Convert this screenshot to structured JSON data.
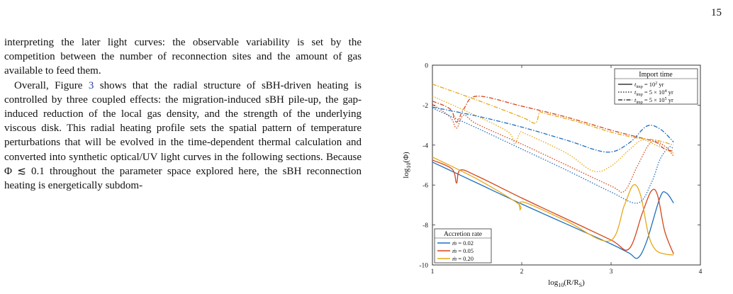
{
  "page": {
    "number": "15"
  },
  "text_column": {
    "paragraph1": "interpreting the later light curves: the observable variability is set by the competition between the number of reconnection sites and the amount of gas available to feed them.",
    "paragraph2_before_ref": "Overall, Figure ",
    "paragraph2_ref": "3",
    "paragraph2_after_ref": " shows that the radial structure of sBH-driven heating is controlled by three coupled effects: the migration-induced sBH pile-up, the gap-induced reduction of the local gas density, and the strength of the underlying viscous disk. This radial heating profile sets the spatial pattern of temperature perturbations that will be evolved in the time-dependent thermal calculation and converted into synthetic optical/UV light curves in the following sections. Because Φ ≲ 0.1 throughout the parameter space explored here, the sBH reconnection heating is energetically subdom-"
  },
  "chart_data": {
    "type": "line",
    "xlabel": "log10(R/RS)",
    "ylabel": "log10(Φ)",
    "xlim": [
      1,
      4
    ],
    "ylim": [
      -10,
      0
    ],
    "xticks": [
      "1",
      "2",
      "3",
      "4"
    ],
    "yticks": [
      "0",
      "-2",
      "-4",
      "-6",
      "-8",
      "-10"
    ],
    "colors": {
      "0.02": "#1f6fc0",
      "0.05": "#d4461a",
      "0.20": "#e6a817"
    },
    "legend_import": {
      "title": "Import time",
      "placement": "top-right",
      "entries": [
        {
          "style": "solid",
          "label": "t_imp = 10^2 yr"
        },
        {
          "style": "dotted",
          "label": "t_imp = 5 × 10^4 yr"
        },
        {
          "style": "dashdot",
          "label": "t_imp = 5 × 10^5 yr"
        }
      ]
    },
    "legend_accretion": {
      "title": "Accretion rate",
      "placement": "bottom-left",
      "entries": [
        {
          "color": "#1f6fc0",
          "label": "ṁ = 0.02"
        },
        {
          "color": "#d4461a",
          "label": "ṁ = 0.05"
        },
        {
          "color": "#e6a817",
          "label": "ṁ = 0.20"
        }
      ]
    },
    "series": [
      {
        "mdot": "0.02",
        "style": "solid",
        "color": "#1f6fc0",
        "x": [
          1.0,
          1.5,
          2.0,
          2.5,
          3.0,
          3.2,
          3.3,
          3.4,
          3.55,
          3.62,
          3.7
        ],
        "y": [
          -4.85,
          -5.9,
          -6.95,
          -7.95,
          -8.95,
          -9.4,
          -9.65,
          -8.8,
          -6.6,
          -6.4,
          -6.9
        ]
      },
      {
        "mdot": "0.05",
        "style": "solid",
        "color": "#d4461a",
        "x": [
          1.0,
          1.22,
          1.27,
          1.31,
          1.5,
          2.0,
          2.5,
          3.0,
          3.2,
          3.35,
          3.45,
          3.52,
          3.6,
          3.7
        ],
        "y": [
          -4.75,
          -5.2,
          -5.9,
          -5.25,
          -5.55,
          -6.65,
          -7.7,
          -8.75,
          -9.2,
          -7.4,
          -6.3,
          -6.5,
          -8.3,
          -9.45
        ]
      },
      {
        "mdot": "0.20",
        "style": "solid",
        "color": "#e6a817",
        "x": [
          1.0,
          1.5,
          1.95,
          1.98,
          2.02,
          2.5,
          2.98,
          3.15,
          3.25,
          3.33,
          3.42,
          3.5,
          3.6,
          3.7
        ],
        "y": [
          -4.6,
          -5.7,
          -6.9,
          -7.25,
          -6.85,
          -7.8,
          -8.8,
          -7.0,
          -6.0,
          -6.5,
          -8.5,
          -9.25,
          -9.45,
          -9.5
        ]
      },
      {
        "mdot": "0.02",
        "style": "dotted",
        "color": "#1f6fc0",
        "x": [
          1.0,
          1.5,
          2.0,
          2.5,
          3.0,
          3.3,
          3.45,
          3.55,
          3.65,
          3.7
        ],
        "y": [
          -2.15,
          -3.15,
          -4.2,
          -5.25,
          -6.35,
          -6.9,
          -5.9,
          -4.7,
          -4.1,
          -4.2
        ]
      },
      {
        "mdot": "0.05",
        "style": "dotted",
        "color": "#d4461a",
        "x": [
          1.0,
          1.2,
          1.27,
          1.35,
          1.5,
          2.0,
          2.5,
          3.0,
          3.15,
          3.3,
          3.45,
          3.6,
          3.7
        ],
        "y": [
          -1.95,
          -2.6,
          -3.15,
          -2.5,
          -2.95,
          -3.95,
          -5.0,
          -6.05,
          -6.3,
          -5.0,
          -3.85,
          -4.05,
          -4.55
        ]
      },
      {
        "mdot": "0.20",
        "style": "dotted",
        "color": "#e6a817",
        "x": [
          1.0,
          1.5,
          1.85,
          1.92,
          1.98,
          2.05,
          2.5,
          2.8,
          3.0,
          3.2,
          3.35,
          3.5,
          3.7
        ],
        "y": [
          -1.55,
          -2.55,
          -3.35,
          -3.95,
          -3.4,
          -3.45,
          -4.4,
          -5.3,
          -5.05,
          -4.25,
          -3.75,
          -4.0,
          -4.4
        ]
      },
      {
        "mdot": "0.02",
        "style": "dashdot",
        "color": "#1f6fc0",
        "x": [
          1.0,
          1.5,
          2.0,
          2.5,
          2.95,
          3.2,
          3.4,
          3.55,
          3.7
        ],
        "y": [
          -2.1,
          -2.55,
          -3.1,
          -3.75,
          -4.35,
          -3.9,
          -3.05,
          -3.2,
          -3.85
        ]
      },
      {
        "mdot": "0.05",
        "style": "dashdot",
        "color": "#d4461a",
        "x": [
          1.0,
          1.2,
          1.27,
          1.35,
          1.5,
          2.0,
          2.5,
          3.0,
          3.3,
          3.5,
          3.6,
          3.7
        ],
        "y": [
          -1.8,
          -2.2,
          -2.85,
          -2.2,
          -1.55,
          -2.05,
          -2.6,
          -3.25,
          -3.6,
          -3.85,
          -4.2,
          -4.3
        ]
      },
      {
        "mdot": "0.20",
        "style": "dashdot",
        "color": "#e6a817",
        "x": [
          1.0,
          1.5,
          2.0,
          2.15,
          2.2,
          2.25,
          2.6,
          3.0,
          3.3,
          3.5,
          3.7
        ],
        "y": [
          -0.95,
          -1.75,
          -2.6,
          -2.9,
          -2.35,
          -2.4,
          -2.8,
          -3.35,
          -3.65,
          -3.75,
          -4.0
        ]
      }
    ]
  }
}
